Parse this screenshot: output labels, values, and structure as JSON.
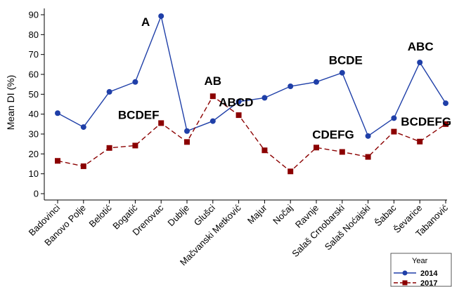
{
  "chart_data": {
    "type": "line",
    "ylabel": "Mean DI (%)",
    "xlabel": "",
    "ylim": [
      0,
      90
    ],
    "yticks": [
      "0",
      "10",
      "20",
      "30",
      "40",
      "50",
      "60",
      "70",
      "80",
      "90"
    ],
    "categories": [
      "Badovinci",
      "Banovo Polje",
      "Belotić",
      "Bogatić",
      "Drenovac",
      "Dublje",
      "Glušci",
      "Mačvanski Metković",
      "Majur",
      "Nočaj",
      "Ravnje",
      "Salaš Crnobarski",
      "Salaš Noćajski",
      "Šabac",
      "Ševarice",
      "Tabanović"
    ],
    "series": [
      {
        "name": "2014",
        "color": "#1f3fa8",
        "marker": "circle",
        "line": "solid",
        "values": [
          40.5,
          33.5,
          51.2,
          56.2,
          89.3,
          31.5,
          36.5,
          46.3,
          48.2,
          54.0,
          56.2,
          60.8,
          29.0,
          38.0,
          66.0,
          45.5
        ]
      },
      {
        "name": "2017",
        "color": "#8b0000",
        "marker": "square",
        "line": "dashed",
        "values": [
          16.5,
          13.8,
          23.0,
          24.2,
          35.5,
          26.0,
          49.0,
          39.5,
          21.8,
          11.2,
          23.2,
          21.0,
          18.5,
          31.2,
          26.2,
          35.0
        ]
      }
    ],
    "annotations": [
      {
        "text": "A",
        "category": "Drenovac",
        "y": 89.3
      },
      {
        "text": "BCDEF",
        "category": "Drenovac",
        "y": 35.5
      },
      {
        "text": "AB",
        "category": "Glušci",
        "y": 49.0
      },
      {
        "text": "ABCD",
        "category": "Glušci",
        "y": 36.5
      },
      {
        "text": "BCDE",
        "category": "Salaš Crnobarski",
        "y": 60.8
      },
      {
        "text": "CDEFG",
        "category": "Ravnje",
        "y": 23.2
      },
      {
        "text": "ABC",
        "category": "Ševarice",
        "y": 66.0
      },
      {
        "text": "BCDEFG",
        "category": "Ševarice",
        "y": 26.2
      }
    ],
    "legend": {
      "title": "Year",
      "position": "bottom-right",
      "entries": [
        "2014",
        "2017"
      ]
    },
    "grid": false
  }
}
